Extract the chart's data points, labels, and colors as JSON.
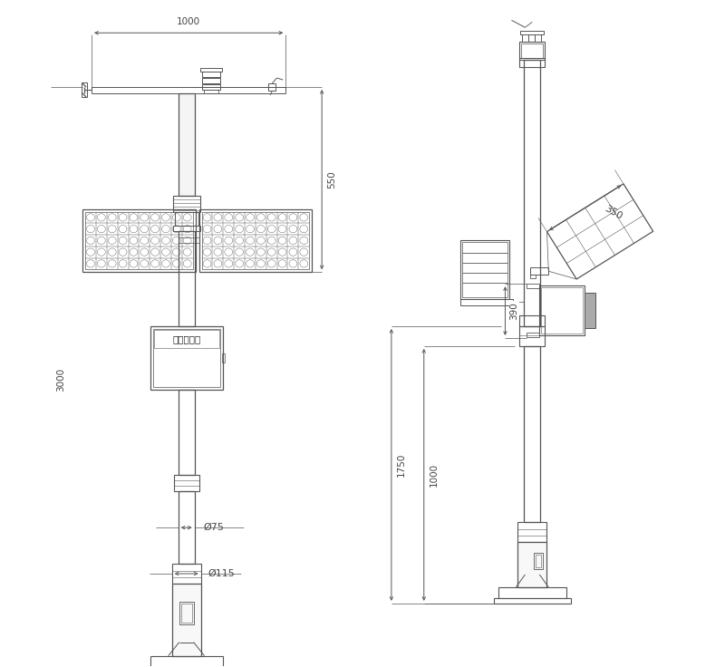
{
  "bg_color": "#ffffff",
  "lc": "#555555",
  "tc": "#444444",
  "figsize": [
    8.0,
    7.36
  ],
  "dpi": 100,
  "dims": {
    "w1000": "1000",
    "h3000": "3000",
    "h550": "550",
    "d75": "Ø75",
    "d115": "Ø115",
    "h350": "350",
    "h390": "390",
    "h1750": "1750",
    "h1000": "1000"
  }
}
